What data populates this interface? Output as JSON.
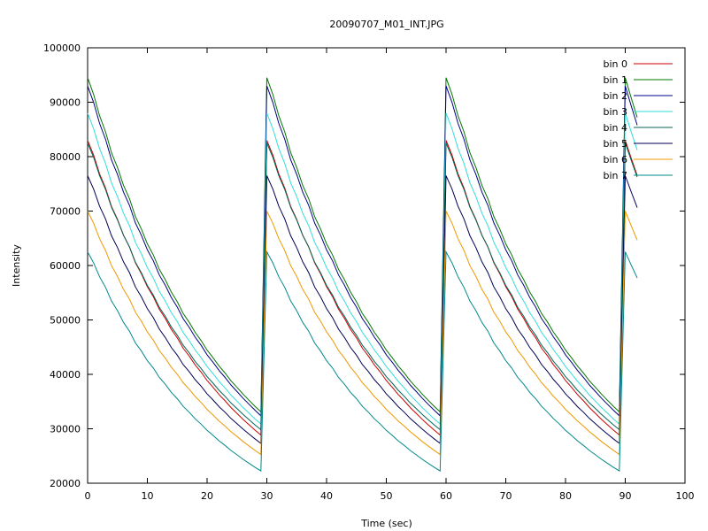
{
  "chart_data": {
    "type": "line",
    "title": "20090707_M01_INT.JPG",
    "xlabel": "Time (sec)",
    "ylabel": "Intensity",
    "xlim": [
      0,
      100
    ],
    "ylim": [
      20000,
      100000
    ],
    "x_ticks": [
      "0",
      "10",
      "20",
      "30",
      "40",
      "50",
      "60",
      "70",
      "80",
      "90",
      "100"
    ],
    "y_ticks": [
      "20000",
      "30000",
      "40000",
      "50000",
      "60000",
      "70000",
      "80000",
      "90000",
      "100000"
    ],
    "grid": false,
    "legend_position": "top-right",
    "cycle": {
      "period": 30,
      "segment_end_offset": 29.4,
      "cycles": 3,
      "final_tail_to": 92
    },
    "series": [
      {
        "name": "bin 0",
        "color": "#cc0000",
        "peak": 83000,
        "trough": 28500
      },
      {
        "name": "bin 1",
        "color": "#007700",
        "peak": 94500,
        "trough": 32700
      },
      {
        "name": "bin 2",
        "color": "#000088",
        "peak": 93000,
        "trough": 32000
      },
      {
        "name": "bin 3",
        "color": "#33dddd",
        "peak": 88000,
        "trough": 30500
      },
      {
        "name": "bin 4",
        "color": "#006655",
        "peak": 82500,
        "trough": 29500
      },
      {
        "name": "bin 5",
        "color": "#000055",
        "peak": 76500,
        "trough": 27000
      },
      {
        "name": "bin 6",
        "color": "#ee9900",
        "peak": 70000,
        "trough": 25000
      },
      {
        "name": "bin 7",
        "color": "#008888",
        "peak": 62500,
        "trough": 22000
      }
    ]
  }
}
